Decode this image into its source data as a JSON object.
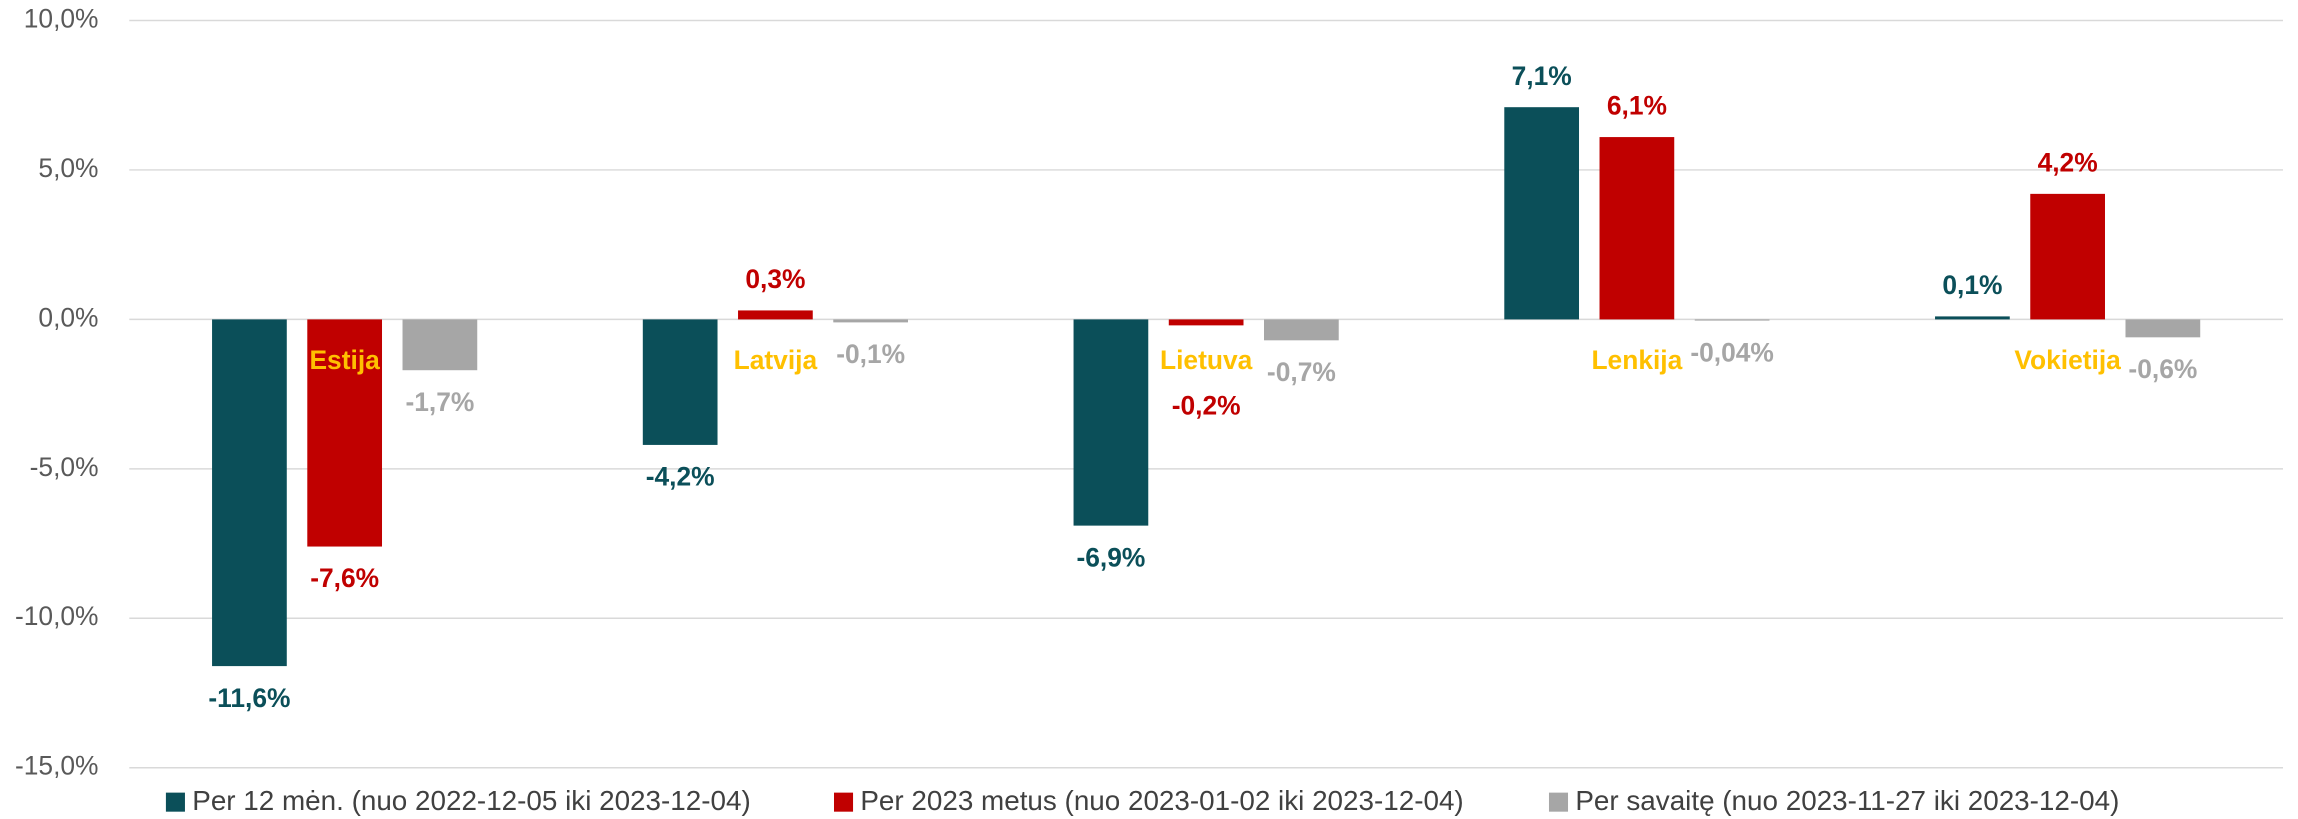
{
  "chart_data": {
    "type": "bar",
    "categories": [
      "Estija",
      "Latvija",
      "Lietuva",
      "Lenkija",
      "Vokietija"
    ],
    "series": [
      {
        "name": "Per 12 mėn. (nuo 2022-12-05 iki 2023-12-04)",
        "color": "#0b4f59",
        "values": [
          -11.6,
          -4.2,
          -6.9,
          7.1,
          0.1
        ],
        "value_labels": [
          "-11,6%",
          "-4,2%",
          "-6,9%",
          "7,1%",
          "0,1%"
        ]
      },
      {
        "name": "Per 2023 metus (nuo 2023-01-02 iki 2023-12-04)",
        "color": "#c00000",
        "values": [
          -7.6,
          0.3,
          -0.2,
          6.1,
          4.2
        ],
        "value_labels": [
          "-7,6%",
          "0,3%",
          "-0,2%",
          "6,1%",
          "4,2%"
        ]
      },
      {
        "name": "Per savaitę (nuo 2023-11-27 iki 2023-12-04)",
        "color": "#a6a6a6",
        "values": [
          -1.7,
          -0.1,
          -0.7,
          -0.04,
          -0.6
        ],
        "value_labels": [
          "-1,7%",
          "-0,1%",
          "-0,7%",
          "-0,04%",
          "-0,6%"
        ]
      }
    ],
    "ylim": [
      -15,
      10
    ],
    "yticks": [
      {
        "value": -15,
        "label": "-15,0%"
      },
      {
        "value": -10,
        "label": "-10,0%"
      },
      {
        "value": -5,
        "label": "-5,0%"
      },
      {
        "value": 0,
        "label": "0,0%"
      },
      {
        "value": 5,
        "label": "5,0%"
      },
      {
        "value": 10,
        "label": "10,0%"
      }
    ],
    "grid": true,
    "legend": "bottom"
  }
}
